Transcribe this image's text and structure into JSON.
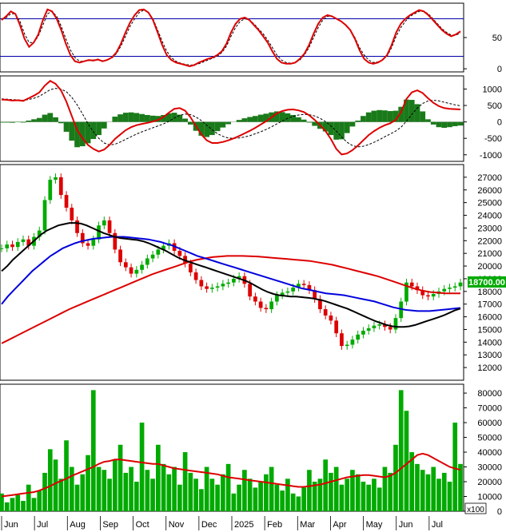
{
  "chart_data": {
    "type": "stock_technical",
    "months": [
      "Jun",
      "Jul",
      "Aug",
      "Sep",
      "Oct",
      "Nov",
      "Dec",
      "2025",
      "Feb",
      "Mar",
      "Apr",
      "May",
      "Jun",
      "Jul"
    ],
    "last_price_label": "18700.00",
    "volume_unit_label": "x100",
    "colors": {
      "up": "#00aa00",
      "down": "#dd0000",
      "ma_red": "#dd0000",
      "ma_blue": "#0000dd",
      "ma_black": "#000000",
      "band": "#0000aa",
      "volume": "#00aa00",
      "signal": "#000000"
    },
    "panels": [
      {
        "name": "stochastic",
        "yrange": [
          -5,
          105
        ],
        "yticks": [
          0,
          50
        ],
        "bands": [
          80,
          20
        ],
        "k": [
          78,
          84,
          92,
          88,
          70,
          48,
          35,
          42,
          55,
          78,
          95,
          92,
          80,
          62,
          40,
          22,
          12,
          10,
          12,
          14,
          13,
          15,
          12,
          14,
          18,
          26,
          40,
          58,
          74,
          86,
          94,
          95,
          90,
          78,
          58,
          38,
          22,
          14,
          10,
          8,
          6,
          4,
          6,
          10,
          13,
          16,
          18,
          22,
          28,
          40,
          58,
          72,
          80,
          82,
          78,
          70,
          62,
          52,
          42,
          28,
          16,
          10,
          8,
          8,
          10,
          16,
          24,
          38,
          56,
          72,
          82,
          86,
          84,
          80,
          76,
          70,
          62,
          48,
          30,
          16,
          10,
          8,
          10,
          14,
          22,
          38,
          58,
          72,
          80,
          86,
          90,
          94,
          92,
          86,
          78,
          70,
          62,
          56,
          52,
          55,
          60
        ],
        "d": [
          80,
          82,
          88,
          88,
          76,
          56,
          42,
          42,
          52,
          70,
          88,
          92,
          84,
          68,
          48,
          30,
          18,
          12,
          12,
          13,
          14,
          14,
          13,
          14,
          17,
          24,
          36,
          52,
          68,
          80,
          90,
          94,
          90,
          80,
          62,
          44,
          28,
          18,
          12,
          9,
          7,
          6,
          6,
          8,
          11,
          14,
          17,
          20,
          26,
          36,
          52,
          66,
          76,
          80,
          78,
          72,
          64,
          56,
          46,
          34,
          22,
          14,
          10,
          9,
          10,
          14,
          22,
          34,
          50,
          66,
          78,
          84,
          84,
          80,
          76,
          70,
          62,
          50,
          34,
          22,
          14,
          10,
          11,
          14,
          20,
          34,
          52,
          66,
          76,
          84,
          88,
          92,
          92,
          88,
          80,
          72,
          64,
          58,
          54,
          54,
          57
        ]
      },
      {
        "name": "macd",
        "yrange": [
          -1200,
          1400
        ],
        "yticks": [
          -1000,
          -500,
          0,
          500,
          1000
        ],
        "macd": [
          680,
          670,
          650,
          660,
          640,
          720,
          800,
          900,
          1100,
          1250,
          1160,
          960,
          620,
          180,
          -250,
          -500,
          -700,
          -820,
          -900,
          -840,
          -700,
          -520,
          -380,
          -250,
          -160,
          -100,
          -60,
          -30,
          10,
          60,
          150,
          280,
          400,
          420,
          340,
          140,
          -120,
          -380,
          -560,
          -640,
          -640,
          -610,
          -560,
          -500,
          -430,
          -350,
          -270,
          -180,
          -80,
          20,
          140,
          260,
          330,
          370,
          380,
          350,
          300,
          200,
          60,
          -100,
          -280,
          -520,
          -820,
          -990,
          -960,
          -860,
          -720,
          -560,
          -400,
          -280,
          -180,
          -100,
          -40,
          60,
          300,
          700,
          900,
          960,
          880,
          720,
          580,
          480,
          420,
          400,
          390,
          380
        ],
        "signal": [
          700,
          690,
          675,
          670,
          660,
          680,
          720,
          780,
          880,
          980,
          1020,
          1000,
          920,
          750,
          520,
          240,
          -50,
          -300,
          -500,
          -640,
          -700,
          -680,
          -610,
          -530,
          -450,
          -370,
          -300,
          -240,
          -180,
          -120,
          -60,
          20,
          120,
          200,
          240,
          220,
          150,
          40,
          -100,
          -240,
          -360,
          -440,
          -490,
          -500,
          -490,
          -460,
          -420,
          -360,
          -300,
          -230,
          -150,
          -60,
          30,
          110,
          170,
          210,
          230,
          220,
          180,
          110,
          10,
          -120,
          -280,
          -460,
          -620,
          -720,
          -760,
          -740,
          -690,
          -620,
          -540,
          -450,
          -370,
          -280,
          -160,
          20,
          230,
          420,
          560,
          640,
          660,
          640,
          600,
          560,
          520,
          490
        ],
        "hist": [
          -20,
          -20,
          -25,
          -10,
          -20,
          40,
          80,
          120,
          220,
          270,
          140,
          -40,
          -300,
          -570,
          -770,
          -740,
          -650,
          -520,
          -400,
          -200,
          0,
          160,
          230,
          280,
          290,
          270,
          240,
          210,
          190,
          180,
          210,
          260,
          280,
          220,
          100,
          -80,
          -270,
          -420,
          -460,
          -400,
          -280,
          -170,
          -70,
          0,
          60,
          110,
          150,
          180,
          220,
          250,
          290,
          320,
          300,
          260,
          210,
          140,
          70,
          -20,
          -120,
          -210,
          -290,
          -400,
          -540,
          -530,
          -340,
          -140,
          40,
          180,
          290,
          340,
          360,
          350,
          330,
          340,
          460,
          680,
          670,
          540,
          320,
          80,
          -80,
          -160,
          -180,
          -160,
          -130,
          -110
        ]
      },
      {
        "name": "price",
        "yrange": [
          11000,
          28000
        ],
        "yticks": [
          12000,
          13000,
          14000,
          15000,
          16000,
          17000,
          18000,
          19000,
          20000,
          21000,
          22000,
          23000,
          24000,
          25000,
          26000,
          27000
        ],
        "close": [
          21400,
          21700,
          21500,
          21900,
          22100,
          21600,
          22300,
          22800,
          25200,
          26800,
          27000,
          25600,
          24600,
          23600,
          22600,
          21800,
          21600,
          22100,
          23200,
          23600,
          22600,
          21300,
          20300,
          19900,
          19400,
          19700,
          20100,
          20600,
          20900,
          21300,
          21600,
          21800,
          21200,
          20800,
          20200,
          19500,
          18900,
          18400,
          18200,
          18300,
          18400,
          18600,
          18700,
          19000,
          19200,
          18600,
          17600,
          17200,
          16700,
          16600,
          17200,
          17700,
          17900,
          18000,
          18300,
          18600,
          18500,
          18100,
          17400,
          16600,
          16100,
          15700,
          14700,
          13700,
          13800,
          14200,
          14600,
          14900,
          15100,
          15300,
          15400,
          15200,
          15000,
          15900,
          17200,
          18700,
          18400,
          18100,
          17700,
          17600,
          17800,
          18000,
          18200,
          18300,
          18400,
          18700
        ],
        "ma_black": [
          19600,
          20000,
          20500,
          20900,
          21300,
          21700,
          22100,
          22500,
          22800,
          23000,
          23200,
          23300,
          23400,
          23400,
          23350,
          23200,
          23000,
          22800,
          22600,
          22450,
          22300,
          22200,
          22150,
          22100,
          22050,
          21950,
          21800,
          21600,
          21400,
          21200,
          20950,
          20700,
          20500,
          20350,
          20200,
          20050,
          19900,
          19750,
          19600,
          19450,
          19300,
          19150,
          19000,
          18850,
          18650,
          18400,
          18150,
          17950,
          17800,
          17700,
          17650,
          17600,
          17600,
          17550,
          17500,
          17450,
          17350,
          17250,
          17100,
          16950,
          16800,
          16650,
          16450,
          16250,
          16050,
          15850,
          15650,
          15500,
          15350,
          15250,
          15200,
          15200,
          15250,
          15350,
          15500,
          15650,
          15800,
          15950,
          16100,
          16300,
          16500,
          16650
        ],
        "ma_blue": [
          17000,
          17600,
          18100,
          18600,
          19100,
          19600,
          20000,
          20400,
          20800,
          21100,
          21400,
          21600,
          21800,
          21950,
          22050,
          22150,
          22200,
          22250,
          22300,
          22300,
          22300,
          22250,
          22200,
          22150,
          22100,
          22000,
          21900,
          21750,
          21600,
          21400,
          21200,
          21000,
          20800,
          20650,
          20500,
          20350,
          20200,
          20050,
          19900,
          19750,
          19600,
          19450,
          19300,
          19150,
          19000,
          18850,
          18700,
          18550,
          18400,
          18250,
          18150,
          18050,
          17950,
          17850,
          17800,
          17750,
          17700,
          17600,
          17500,
          17400,
          17300,
          17200,
          17050,
          16900,
          16750,
          16650,
          16550,
          16500,
          16450,
          16450,
          16450,
          16500,
          16550,
          16600,
          16650,
          16700
        ],
        "ma_red": [
          13900,
          14200,
          14500,
          14800,
          15100,
          15400,
          15700,
          16000,
          16300,
          16600,
          16850,
          17100,
          17350,
          17600,
          17850,
          18100,
          18350,
          18600,
          18850,
          19100,
          19350,
          19550,
          19750,
          19950,
          20150,
          20350,
          20500,
          20600,
          20700,
          20750,
          20800,
          20800,
          20800,
          20780,
          20750,
          20700,
          20650,
          20600,
          20550,
          20500,
          20450,
          20400,
          20300,
          20200,
          20100,
          19950,
          19800,
          19650,
          19500,
          19350,
          19200,
          19000,
          18800,
          18600,
          18400,
          18200,
          18050,
          17950,
          17900,
          17850,
          17850,
          17850
        ]
      },
      {
        "name": "volume",
        "yrange": [
          0,
          86000
        ],
        "yticks": [
          0,
          10000,
          20000,
          30000,
          40000,
          50000,
          60000,
          70000,
          80000
        ],
        "bars": [
          12000,
          6000,
          9000,
          11000,
          7000,
          18000,
          9000,
          14000,
          26000,
          42000,
          35000,
          22000,
          48000,
          30000,
          18000,
          25000,
          38000,
          82000,
          30000,
          28000,
          22000,
          35000,
          45000,
          26000,
          30000,
          20000,
          60000,
          28000,
          22000,
          45000,
          32000,
          25000,
          30000,
          18000,
          40000,
          26000,
          22000,
          15000,
          30000,
          22000,
          18000,
          25000,
          32000,
          12000,
          18000,
          28000,
          22000,
          16000,
          20000,
          25000,
          30000,
          18000,
          14000,
          22000,
          12000,
          10000,
          16000,
          28000,
          20000,
          22000,
          35000,
          26000,
          30000,
          18000,
          22000,
          28000,
          25000,
          20000,
          18000,
          22000,
          16000,
          30000,
          26000,
          45000,
          82000,
          68000,
          40000,
          32000,
          28000,
          25000,
          30000,
          22000,
          26000,
          20000,
          60000,
          32000
        ],
        "ma": [
          10000,
          10500,
          11000,
          11500,
          12000,
          12500,
          13000,
          14000,
          15500,
          17000,
          19000,
          20500,
          22000,
          24000,
          25500,
          27000,
          28500,
          30000,
          32000,
          33500,
          34000,
          35000,
          35000,
          34500,
          34000,
          33500,
          33000,
          32500,
          32000,
          32000,
          31000,
          30000,
          29000,
          28500,
          28000,
          27500,
          27000,
          26500,
          26000,
          25500,
          25000,
          24000,
          23000,
          22500,
          22000,
          21500,
          21000,
          20500,
          20000,
          19500,
          19000,
          18500,
          18000,
          17500,
          17000,
          16500,
          16500,
          17000,
          17500,
          18000,
          19000,
          20000,
          21000,
          22000,
          23000,
          23500,
          24000,
          24500,
          24500,
          24000,
          23500,
          23000,
          24000,
          26000,
          29000,
          32000,
          35000,
          38000,
          39000,
          38000,
          36000,
          34000,
          32000,
          30000,
          29000,
          28000
        ]
      }
    ]
  }
}
